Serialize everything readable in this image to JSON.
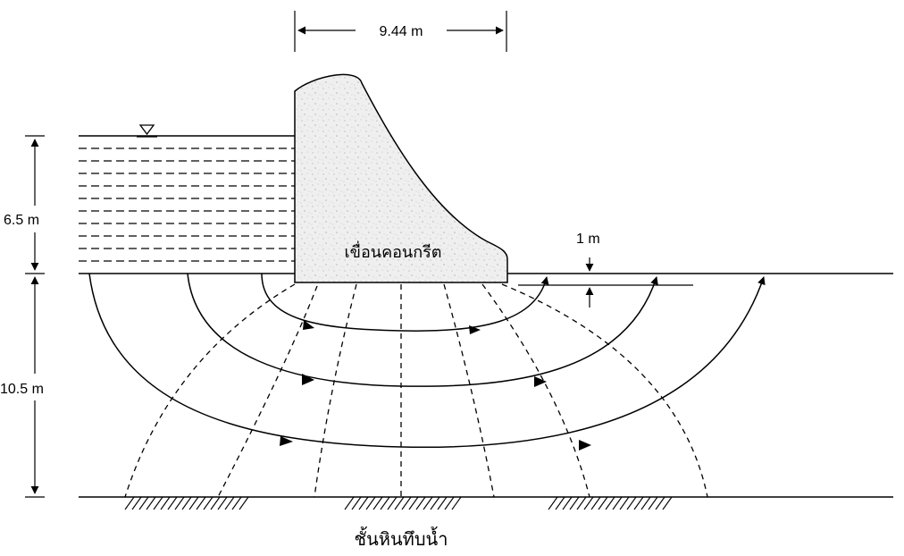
{
  "labels": {
    "dam_width": "9.44 m",
    "water_depth": "6.5 m",
    "foundation_depth": "10.5 m",
    "tailwater_depth": "1 m",
    "dam_name": "เขื่อนคอนกรีต",
    "impervious_layer": "ชั้นหินทึบน้ำ"
  }
}
